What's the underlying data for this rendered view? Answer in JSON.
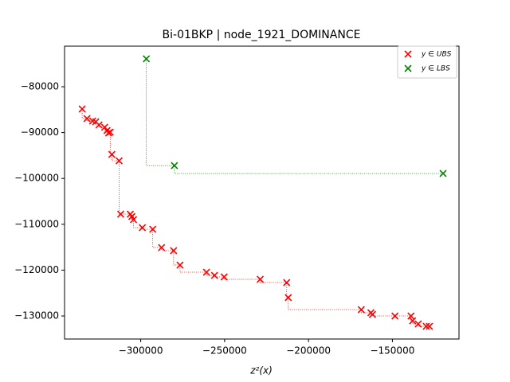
{
  "chart_data": {
    "type": "scatter",
    "title": "Bi-01BKP | node_1921_DOMINANCE",
    "x_label": "z²(x)",
    "xlim": [
      -345400,
      -110300
    ],
    "ylim": [
      -135030,
      -71150
    ],
    "xticks": [
      {
        "value": -300000,
        "label": "−300000"
      },
      {
        "value": -250000,
        "label": "−250000"
      },
      {
        "value": -200000,
        "label": "−200000"
      },
      {
        "value": -150000,
        "label": "−150000"
      }
    ],
    "yticks": [
      {
        "value": -80000,
        "label": "−80000"
      },
      {
        "value": -90000,
        "label": "−90000"
      },
      {
        "value": -100000,
        "label": "−100000"
      },
      {
        "value": -110000,
        "label": "−110000"
      },
      {
        "value": -120000,
        "label": "−120000"
      },
      {
        "value": -130000,
        "label": "−130000"
      }
    ],
    "legend_position": "upper right",
    "series": [
      {
        "name": "y ∈ UBS",
        "color": "#ff0000",
        "x": [
          -334900,
          -332030,
          -328680,
          -326770,
          -324860,
          -321500,
          -320080,
          -319120,
          -318160,
          -317210,
          -312900,
          -311950,
          -306210,
          -305260,
          -304300,
          -299040,
          -292830,
          -287570,
          -280400,
          -276580,
          -260800,
          -256020,
          -250290,
          -228780,
          -213000,
          -212050,
          -168550,
          -162810,
          -161850,
          -148470,
          -138910,
          -137950,
          -134610,
          -129830,
          -127920
        ],
        "values": [
          -84860,
          -86940,
          -87470,
          -87640,
          -88330,
          -88850,
          -89550,
          -90070,
          -89900,
          -94760,
          -96150,
          -107780,
          -107780,
          -108300,
          -108990,
          -110730,
          -111080,
          -115070,
          -115760,
          -118890,
          -120450,
          -121150,
          -121490,
          -122010,
          -122710,
          -126000,
          -128610,
          -129300,
          -129650,
          -130000,
          -130000,
          -131040,
          -131740,
          -132260,
          -132260
        ]
      },
      {
        "name": "y ∈ LBS",
        "color": "#008000",
        "x": [
          -296650,
          -279920,
          -119790
        ],
        "values": [
          -73920,
          -97190,
          -98920
        ]
      }
    ]
  }
}
